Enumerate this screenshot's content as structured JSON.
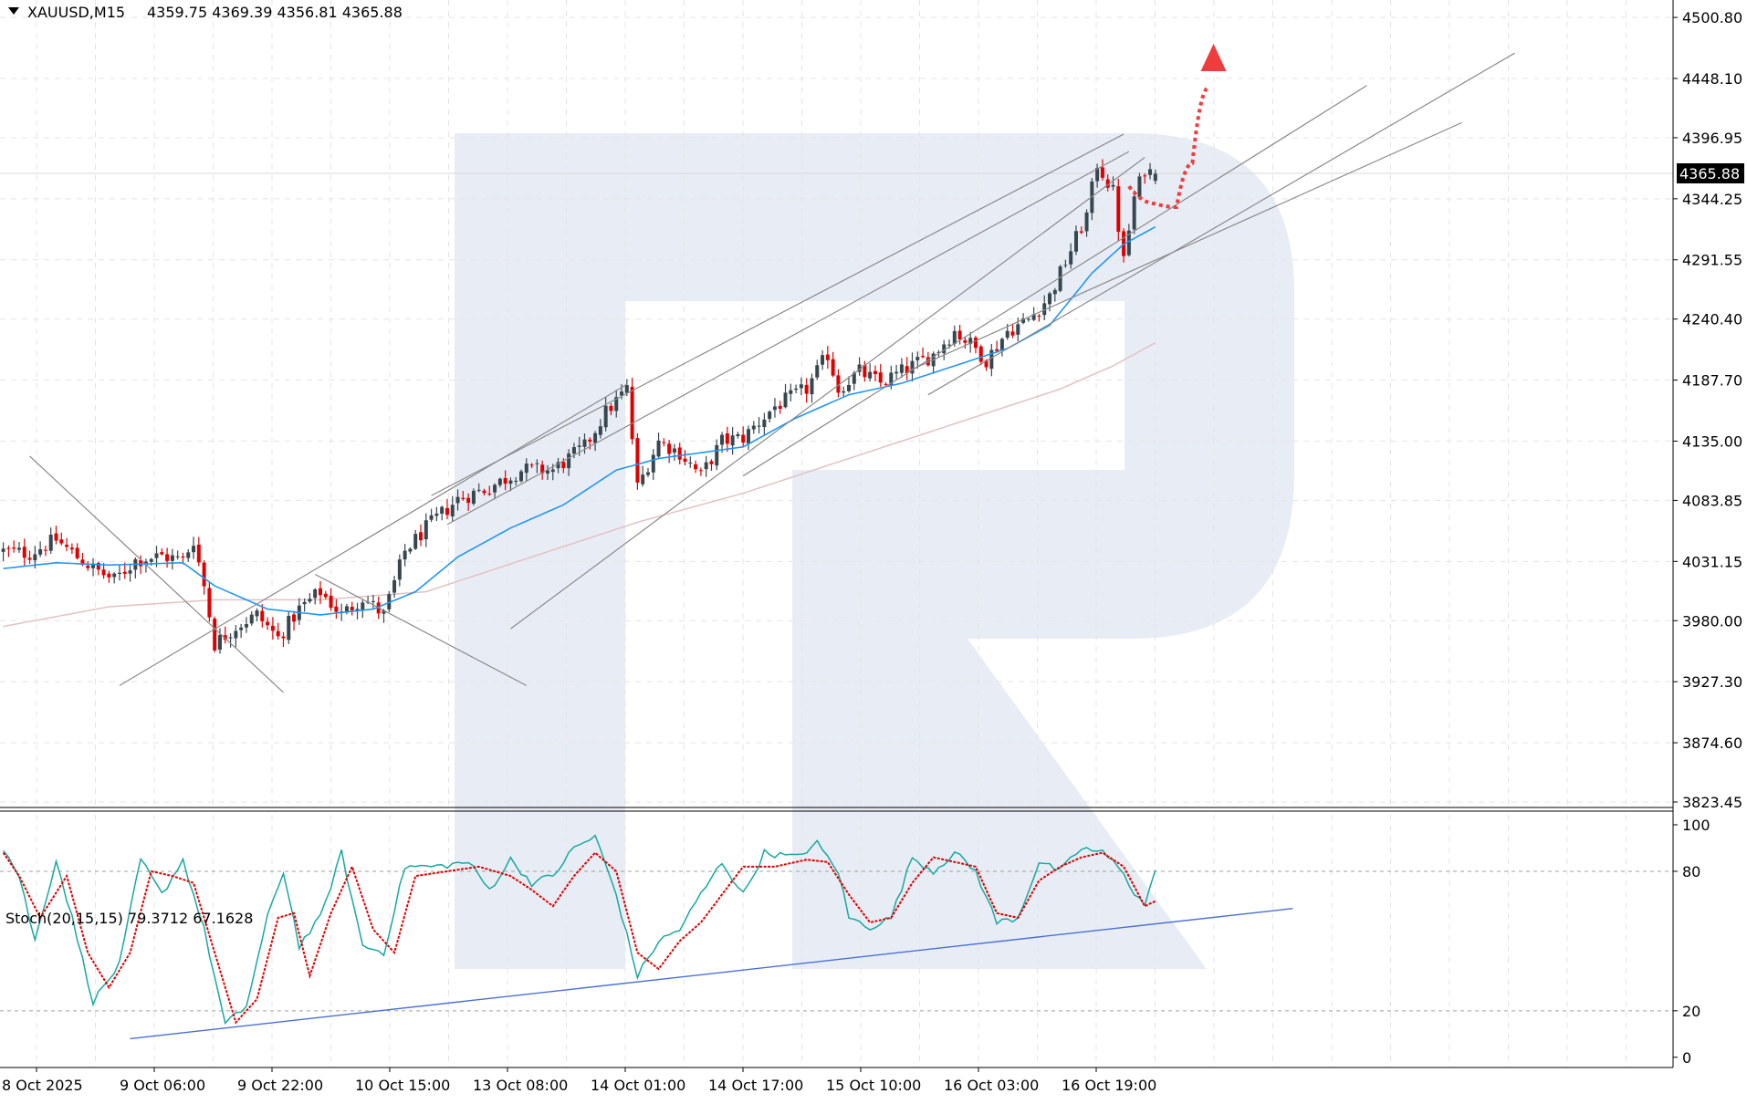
{
  "colors": {
    "bull_body": "#37474f",
    "bear_body": "#e00000",
    "ma_fast": "#2196f3",
    "ma_slow": "#e2c2c2",
    "stoch_main": "#17a8a0",
    "stoch_signal": "#e00000",
    "trendline": "#8a8a8a",
    "stoch_support": "#4a6fd8",
    "forecast": "#f03c3c",
    "grid": "#e4e4e4",
    "watermark": "#e8edf5"
  },
  "header": {
    "symbol": "XAUUSD,M15",
    "ohlc": "4359.75 4369.39 4356.81 4365.88"
  },
  "stoch_header": {
    "label": "Stoch(20,15,15) 79.3712 67.1628"
  },
  "current_price_label": "4365.88",
  "chart_data": [
    {
      "type": "candlestick",
      "title": "XAUUSD,M15",
      "ohlc_last": {
        "open": 4359.75,
        "high": 4369.39,
        "low": 4356.81,
        "close": 4365.88
      },
      "ylim": [
        3810,
        4515
      ],
      "y_ticks": [
        "4500.80",
        "4448.10",
        "4396.95",
        "4344.25",
        "4291.55",
        "4240.40",
        "4187.70",
        "4135.00",
        "4083.85",
        "4031.15",
        "3980.00",
        "3927.30",
        "3874.60",
        "3823.45"
      ],
      "x_ticks": [
        "8 Oct 2025",
        "9 Oct 06:00",
        "9 Oct 22:00",
        "10 Oct 15:00",
        "13 Oct 08:00",
        "14 Oct 01:00",
        "14 Oct 17:00",
        "15 Oct 10:00",
        "16 Oct 03:00",
        "16 Oct 19:00"
      ],
      "anchors": [
        {
          "i": 0,
          "p": 4040
        },
        {
          "i": 5,
          "p": 4038
        },
        {
          "i": 10,
          "p": 4050
        },
        {
          "i": 14,
          "p": 4035
        },
        {
          "i": 17,
          "p": 4025
        },
        {
          "i": 21,
          "p": 4015
        },
        {
          "i": 25,
          "p": 4032
        },
        {
          "i": 30,
          "p": 4036
        },
        {
          "i": 34,
          "p": 4032
        },
        {
          "i": 36,
          "p": 4050
        },
        {
          "i": 38,
          "p": 4010
        },
        {
          "i": 40,
          "p": 3960
        },
        {
          "i": 44,
          "p": 3975
        },
        {
          "i": 48,
          "p": 3985
        },
        {
          "i": 52,
          "p": 3965
        },
        {
          "i": 56,
          "p": 3990
        },
        {
          "i": 60,
          "p": 4005
        },
        {
          "i": 64,
          "p": 3985
        },
        {
          "i": 68,
          "p": 4000
        },
        {
          "i": 72,
          "p": 3985
        },
        {
          "i": 76,
          "p": 4040
        },
        {
          "i": 80,
          "p": 4060
        },
        {
          "i": 86,
          "p": 4085
        },
        {
          "i": 92,
          "p": 4095
        },
        {
          "i": 98,
          "p": 4110
        },
        {
          "i": 104,
          "p": 4110
        },
        {
          "i": 110,
          "p": 4130
        },
        {
          "i": 114,
          "p": 4160
        },
        {
          "i": 118,
          "p": 4180
        },
        {
          "i": 120,
          "p": 4095
        },
        {
          "i": 124,
          "p": 4135
        },
        {
          "i": 128,
          "p": 4125
        },
        {
          "i": 132,
          "p": 4105
        },
        {
          "i": 136,
          "p": 4135
        },
        {
          "i": 140,
          "p": 4138
        },
        {
          "i": 146,
          "p": 4165
        },
        {
          "i": 152,
          "p": 4180
        },
        {
          "i": 156,
          "p": 4210
        },
        {
          "i": 158,
          "p": 4180
        },
        {
          "i": 162,
          "p": 4195
        },
        {
          "i": 166,
          "p": 4185
        },
        {
          "i": 170,
          "p": 4195
        },
        {
          "i": 176,
          "p": 4210
        },
        {
          "i": 180,
          "p": 4230
        },
        {
          "i": 184,
          "p": 4215
        },
        {
          "i": 186,
          "p": 4205
        },
        {
          "i": 190,
          "p": 4230
        },
        {
          "i": 194,
          "p": 4240
        },
        {
          "i": 198,
          "p": 4260
        },
        {
          "i": 202,
          "p": 4300
        },
        {
          "i": 205,
          "p": 4330
        },
        {
          "i": 207,
          "p": 4375
        },
        {
          "i": 210,
          "p": 4350
        },
        {
          "i": 212,
          "p": 4290
        },
        {
          "i": 214,
          "p": 4345
        },
        {
          "i": 216,
          "p": 4370
        },
        {
          "i": 218,
          "p": 4365
        }
      ],
      "ma_fast_anchors": [
        {
          "i": 0,
          "p": 4025
        },
        {
          "i": 10,
          "p": 4030
        },
        {
          "i": 20,
          "p": 4028
        },
        {
          "i": 34,
          "p": 4030
        },
        {
          "i": 40,
          "p": 4010
        },
        {
          "i": 50,
          "p": 3990
        },
        {
          "i": 60,
          "p": 3985
        },
        {
          "i": 70,
          "p": 3990
        },
        {
          "i": 78,
          "p": 4005
        },
        {
          "i": 86,
          "p": 4035
        },
        {
          "i": 96,
          "p": 4060
        },
        {
          "i": 106,
          "p": 4080
        },
        {
          "i": 116,
          "p": 4110
        },
        {
          "i": 124,
          "p": 4120
        },
        {
          "i": 132,
          "p": 4125
        },
        {
          "i": 140,
          "p": 4130
        },
        {
          "i": 150,
          "p": 4155
        },
        {
          "i": 160,
          "p": 4175
        },
        {
          "i": 170,
          "p": 4185
        },
        {
          "i": 180,
          "p": 4200
        },
        {
          "i": 190,
          "p": 4215
        },
        {
          "i": 198,
          "p": 4235
        },
        {
          "i": 206,
          "p": 4280
        },
        {
          "i": 212,
          "p": 4305
        },
        {
          "i": 218,
          "p": 4320
        }
      ],
      "ma_slow_anchors": [
        {
          "i": 0,
          "p": 3975
        },
        {
          "i": 20,
          "p": 3992
        },
        {
          "i": 40,
          "p": 3998
        },
        {
          "i": 60,
          "p": 3998
        },
        {
          "i": 80,
          "p": 4005
        },
        {
          "i": 100,
          "p": 4035
        },
        {
          "i": 120,
          "p": 4065
        },
        {
          "i": 140,
          "p": 4090
        },
        {
          "i": 160,
          "p": 4120
        },
        {
          "i": 180,
          "p": 4150
        },
        {
          "i": 200,
          "p": 4180
        },
        {
          "i": 210,
          "p": 4200
        },
        {
          "i": 218,
          "p": 4220
        }
      ],
      "trendlines": [
        {
          "from": {
            "i": 5,
            "p": 4122
          },
          "to": {
            "i": 53,
            "p": 3918
          }
        },
        {
          "from": {
            "i": 59,
            "p": 4020
          },
          "to": {
            "i": 99,
            "p": 3924
          }
        },
        {
          "from": {
            "i": 22,
            "p": 3924
          },
          "to": {
            "i": 118,
            "p": 4184
          }
        },
        {
          "from": {
            "i": 81,
            "p": 4088
          },
          "to": {
            "i": 212,
            "p": 4400
          }
        },
        {
          "from": {
            "i": 84,
            "p": 4063
          },
          "to": {
            "i": 213,
            "p": 4385
          }
        },
        {
          "from": {
            "i": 96,
            "p": 3973
          },
          "to": {
            "i": 216,
            "p": 4380
          }
        },
        {
          "from": {
            "i": 140,
            "p": 4105
          },
          "to": {
            "i": 258,
            "p": 4442
          }
        },
        {
          "from": {
            "i": 175,
            "p": 4175
          },
          "to": {
            "i": 286,
            "p": 4470
          }
        },
        {
          "from": {
            "i": 171,
            "p": 4195
          },
          "to": {
            "i": 276,
            "p": 4410
          }
        }
      ],
      "forecast_path": [
        {
          "i": 213,
          "p": 4355
        },
        {
          "i": 218,
          "p": 4340
        },
        {
          "i": 222,
          "p": 4337
        },
        {
          "i": 225,
          "p": 4375
        },
        {
          "i": 228,
          "p": 4440
        }
      ],
      "forecast_arrow_tip": {
        "i": 229,
        "p": 4478
      }
    },
    {
      "type": "line",
      "title": "Stoch(20,15,15)",
      "main_value": 79.3712,
      "signal_value": 67.1628,
      "ylim": [
        -5,
        107
      ],
      "y_ticks": [
        100,
        80,
        20,
        0
      ],
      "levels": [
        80,
        20
      ],
      "main_anchors": [
        {
          "i": 0,
          "p": 90
        },
        {
          "i": 3,
          "p": 78
        },
        {
          "i": 6,
          "p": 50
        },
        {
          "i": 10,
          "p": 85
        },
        {
          "i": 13,
          "p": 60
        },
        {
          "i": 17,
          "p": 24
        },
        {
          "i": 22,
          "p": 40
        },
        {
          "i": 26,
          "p": 85
        },
        {
          "i": 30,
          "p": 70
        },
        {
          "i": 34,
          "p": 85
        },
        {
          "i": 38,
          "p": 55
        },
        {
          "i": 42,
          "p": 14
        },
        {
          "i": 46,
          "p": 22
        },
        {
          "i": 50,
          "p": 60
        },
        {
          "i": 53,
          "p": 80
        },
        {
          "i": 56,
          "p": 48
        },
        {
          "i": 60,
          "p": 60
        },
        {
          "i": 64,
          "p": 88
        },
        {
          "i": 68,
          "p": 48
        },
        {
          "i": 72,
          "p": 45
        },
        {
          "i": 76,
          "p": 82
        },
        {
          "i": 82,
          "p": 82
        },
        {
          "i": 88,
          "p": 84
        },
        {
          "i": 92,
          "p": 72
        },
        {
          "i": 96,
          "p": 85
        },
        {
          "i": 100,
          "p": 75
        },
        {
          "i": 104,
          "p": 78
        },
        {
          "i": 108,
          "p": 90
        },
        {
          "i": 112,
          "p": 95
        },
        {
          "i": 116,
          "p": 70
        },
        {
          "i": 120,
          "p": 35
        },
        {
          "i": 124,
          "p": 50
        },
        {
          "i": 128,
          "p": 55
        },
        {
          "i": 132,
          "p": 70
        },
        {
          "i": 136,
          "p": 84
        },
        {
          "i": 140,
          "p": 70
        },
        {
          "i": 144,
          "p": 88
        },
        {
          "i": 150,
          "p": 86
        },
        {
          "i": 154,
          "p": 92
        },
        {
          "i": 158,
          "p": 80
        },
        {
          "i": 160,
          "p": 60
        },
        {
          "i": 164,
          "p": 56
        },
        {
          "i": 168,
          "p": 60
        },
        {
          "i": 172,
          "p": 86
        },
        {
          "i": 176,
          "p": 80
        },
        {
          "i": 180,
          "p": 88
        },
        {
          "i": 184,
          "p": 80
        },
        {
          "i": 188,
          "p": 58
        },
        {
          "i": 192,
          "p": 60
        },
        {
          "i": 196,
          "p": 84
        },
        {
          "i": 200,
          "p": 80
        },
        {
          "i": 204,
          "p": 90
        },
        {
          "i": 208,
          "p": 88
        },
        {
          "i": 212,
          "p": 80
        },
        {
          "i": 214,
          "p": 70
        },
        {
          "i": 216,
          "p": 66
        },
        {
          "i": 218,
          "p": 79.37
        }
      ],
      "signal_anchors": [
        {
          "i": 0,
          "p": 88
        },
        {
          "i": 3,
          "p": 78
        },
        {
          "i": 7,
          "p": 60
        },
        {
          "i": 12,
          "p": 78
        },
        {
          "i": 16,
          "p": 45
        },
        {
          "i": 20,
          "p": 30
        },
        {
          "i": 24,
          "p": 45
        },
        {
          "i": 28,
          "p": 80
        },
        {
          "i": 32,
          "p": 78
        },
        {
          "i": 36,
          "p": 75
        },
        {
          "i": 40,
          "p": 45
        },
        {
          "i": 44,
          "p": 15
        },
        {
          "i": 48,
          "p": 25
        },
        {
          "i": 52,
          "p": 60
        },
        {
          "i": 55,
          "p": 62
        },
        {
          "i": 58,
          "p": 35
        },
        {
          "i": 62,
          "p": 62
        },
        {
          "i": 66,
          "p": 82
        },
        {
          "i": 70,
          "p": 55
        },
        {
          "i": 74,
          "p": 45
        },
        {
          "i": 78,
          "p": 78
        },
        {
          "i": 84,
          "p": 80
        },
        {
          "i": 90,
          "p": 82
        },
        {
          "i": 96,
          "p": 78
        },
        {
          "i": 100,
          "p": 72
        },
        {
          "i": 104,
          "p": 65
        },
        {
          "i": 108,
          "p": 78
        },
        {
          "i": 112,
          "p": 88
        },
        {
          "i": 116,
          "p": 80
        },
        {
          "i": 120,
          "p": 45
        },
        {
          "i": 124,
          "p": 38
        },
        {
          "i": 128,
          "p": 50
        },
        {
          "i": 132,
          "p": 58
        },
        {
          "i": 136,
          "p": 70
        },
        {
          "i": 140,
          "p": 82
        },
        {
          "i": 146,
          "p": 82
        },
        {
          "i": 152,
          "p": 85
        },
        {
          "i": 156,
          "p": 84
        },
        {
          "i": 160,
          "p": 70
        },
        {
          "i": 164,
          "p": 58
        },
        {
          "i": 168,
          "p": 60
        },
        {
          "i": 172,
          "p": 75
        },
        {
          "i": 176,
          "p": 86
        },
        {
          "i": 180,
          "p": 84
        },
        {
          "i": 184,
          "p": 82
        },
        {
          "i": 188,
          "p": 62
        },
        {
          "i": 192,
          "p": 60
        },
        {
          "i": 196,
          "p": 76
        },
        {
          "i": 200,
          "p": 82
        },
        {
          "i": 204,
          "p": 86
        },
        {
          "i": 208,
          "p": 88
        },
        {
          "i": 212,
          "p": 82
        },
        {
          "i": 216,
          "p": 65
        },
        {
          "i": 218,
          "p": 67.16
        }
      ],
      "support_line": {
        "from": {
          "i": 24,
          "p": 8
        },
        "to": {
          "i": 244,
          "p": 64
        }
      }
    }
  ]
}
